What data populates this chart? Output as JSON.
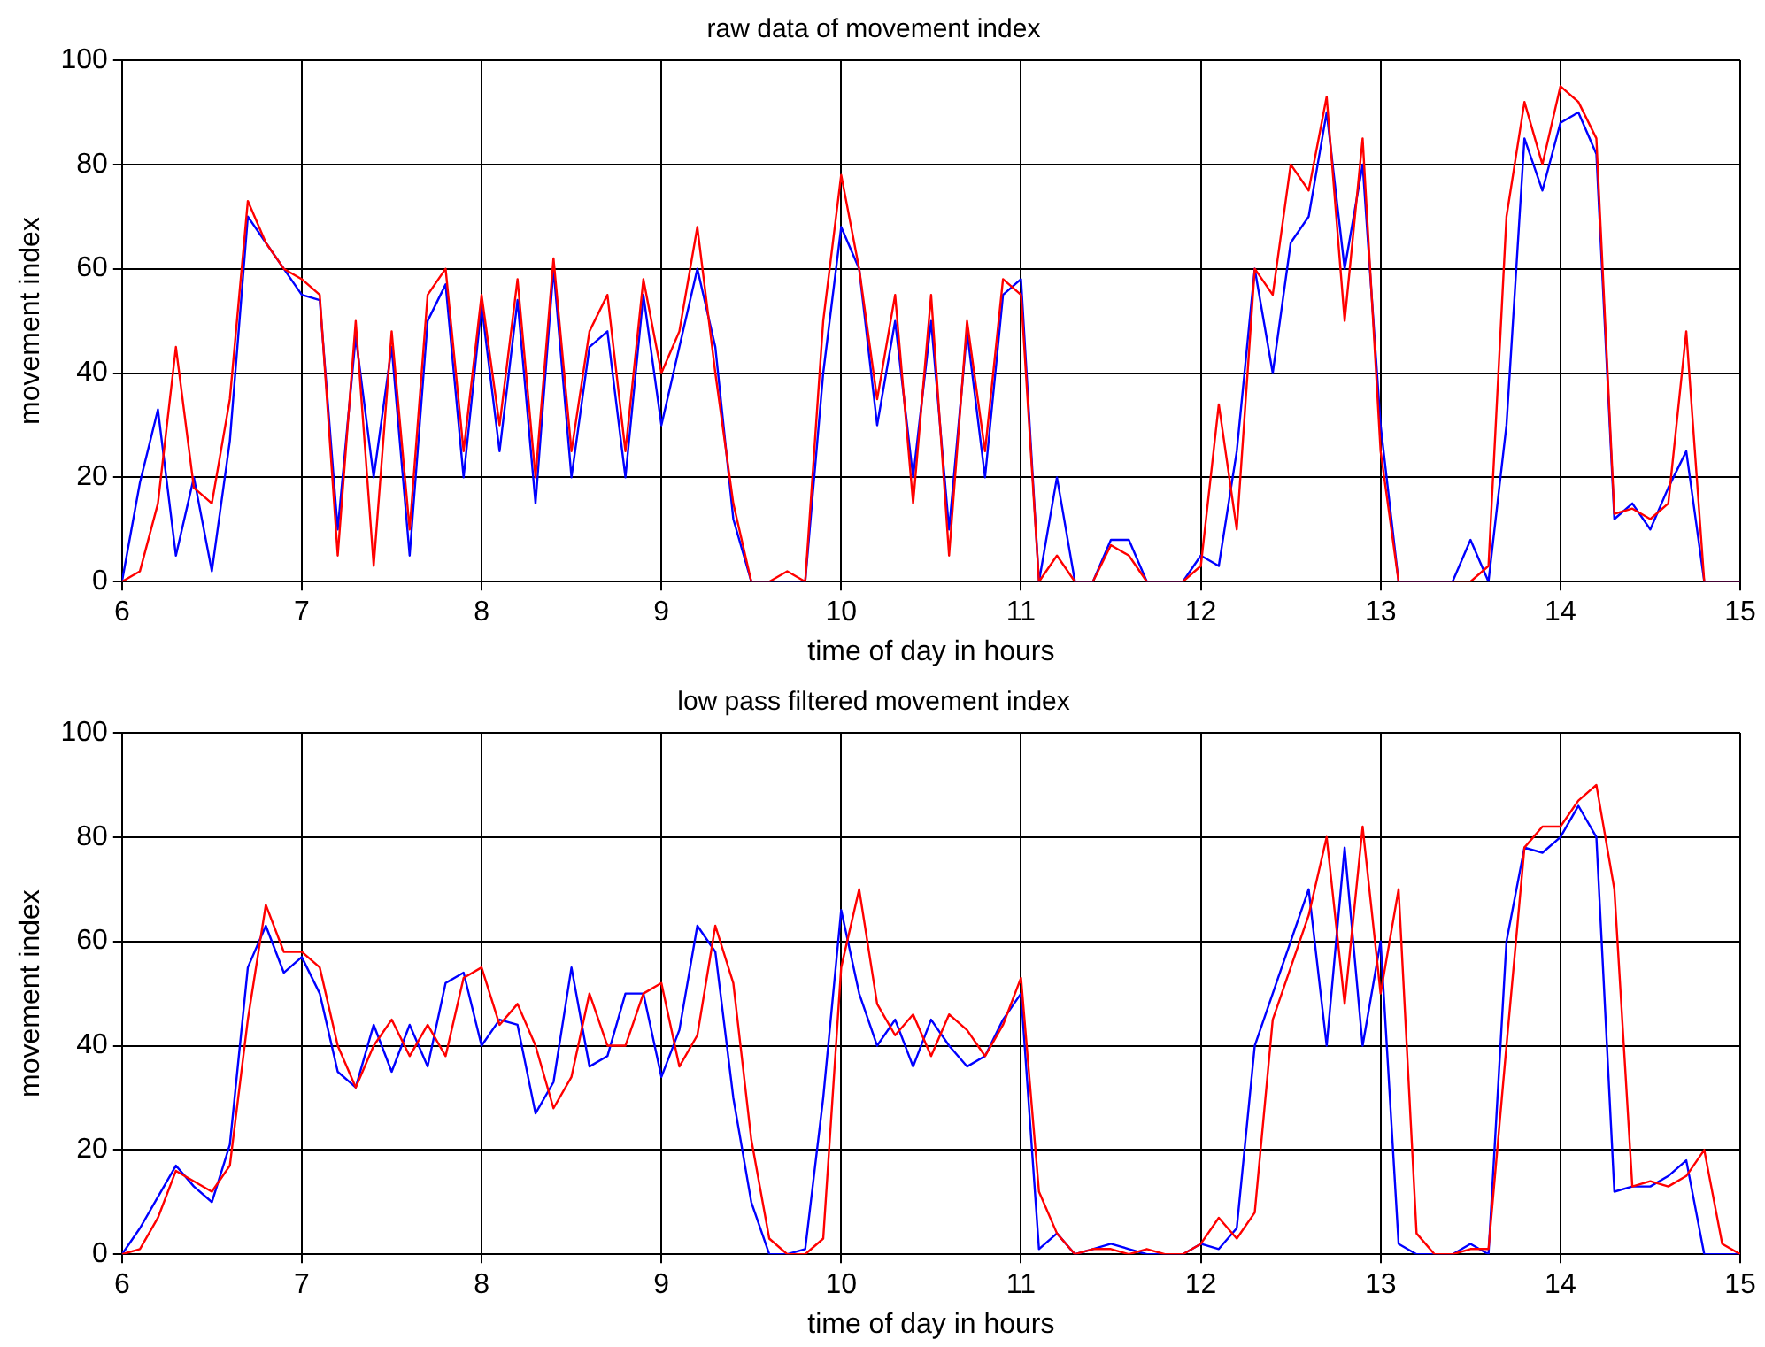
{
  "chart_data": [
    {
      "type": "line",
      "title": "raw data of movement index",
      "xlabel": "time of day in hours",
      "ylabel": "movement index",
      "xlim": [
        6,
        15
      ],
      "xticks": [
        6,
        7,
        8,
        9,
        10,
        11,
        12,
        13,
        14,
        15
      ],
      "ylim": [
        0,
        100
      ],
      "yticks": [
        0,
        20,
        40,
        60,
        80,
        100
      ],
      "grid": true,
      "x": [
        6.0,
        6.1,
        6.2,
        6.3,
        6.4,
        6.5,
        6.6,
        6.7,
        6.8,
        6.9,
        7.0,
        7.1,
        7.2,
        7.3,
        7.4,
        7.5,
        7.6,
        7.7,
        7.8,
        7.9,
        8.0,
        8.1,
        8.2,
        8.3,
        8.4,
        8.5,
        8.6,
        8.7,
        8.8,
        8.9,
        9.0,
        9.1,
        9.2,
        9.3,
        9.4,
        9.5,
        9.6,
        9.7,
        9.8,
        9.9,
        10.0,
        10.1,
        10.2,
        10.3,
        10.4,
        10.5,
        10.6,
        10.7,
        10.8,
        10.9,
        11.0,
        11.1,
        11.2,
        11.3,
        11.4,
        11.5,
        11.6,
        11.7,
        11.8,
        11.9,
        12.0,
        12.1,
        12.2,
        12.3,
        12.4,
        12.5,
        12.6,
        12.7,
        12.8,
        12.9,
        13.0,
        13.1,
        13.2,
        13.3,
        13.4,
        13.5,
        13.6,
        13.7,
        13.8,
        13.9,
        14.0,
        14.1,
        14.2,
        14.3,
        14.4,
        14.5,
        14.6,
        14.7,
        14.8,
        14.9,
        15.0
      ],
      "series": [
        {
          "color": "#ff0000",
          "values": [
            0,
            2,
            15,
            45,
            18,
            15,
            35,
            73,
            65,
            60,
            58,
            55,
            5,
            50,
            3,
            48,
            10,
            55,
            60,
            25,
            55,
            30,
            58,
            20,
            62,
            25,
            48,
            55,
            25,
            58,
            40,
            48,
            68,
            40,
            15,
            0,
            0,
            2,
            0,
            50,
            78,
            60,
            35,
            55,
            15,
            55,
            5,
            50,
            25,
            58,
            55,
            0,
            5,
            0,
            0,
            7,
            5,
            0,
            0,
            0,
            3,
            34,
            10,
            60,
            55,
            80,
            75,
            93,
            50,
            85,
            25,
            0,
            0,
            0,
            0,
            0,
            3,
            70,
            92,
            80,
            95,
            92,
            85,
            13,
            14,
            12,
            15,
            48,
            0,
            0,
            0
          ]
        },
        {
          "color": "#0000ff",
          "values": [
            0,
            19,
            33,
            5,
            20,
            2,
            27,
            70,
            65,
            60,
            55,
            54,
            10,
            47,
            20,
            45,
            5,
            50,
            57,
            20,
            53,
            25,
            54,
            15,
            60,
            20,
            45,
            48,
            20,
            55,
            30,
            45,
            60,
            45,
            12,
            0,
            0,
            0,
            0,
            40,
            68,
            60,
            30,
            50,
            20,
            50,
            10,
            48,
            20,
            55,
            58,
            0,
            20,
            0,
            0,
            8,
            8,
            0,
            0,
            0,
            5,
            3,
            25,
            60,
            40,
            65,
            70,
            90,
            60,
            80,
            30,
            0,
            0,
            0,
            0,
            8,
            0,
            30,
            85,
            75,
            88,
            90,
            82,
            12,
            15,
            10,
            18,
            25,
            0,
            0,
            0
          ]
        }
      ]
    },
    {
      "type": "line",
      "title": "low pass filtered movement index",
      "xlabel": "time of day in hours",
      "ylabel": "movement index",
      "xlim": [
        6,
        15
      ],
      "xticks": [
        6,
        7,
        8,
        9,
        10,
        11,
        12,
        13,
        14,
        15
      ],
      "ylim": [
        0,
        100
      ],
      "yticks": [
        0,
        20,
        40,
        60,
        80,
        100
      ],
      "grid": true,
      "x": [
        6.0,
        6.1,
        6.2,
        6.3,
        6.4,
        6.5,
        6.6,
        6.7,
        6.8,
        6.9,
        7.0,
        7.1,
        7.2,
        7.3,
        7.4,
        7.5,
        7.6,
        7.7,
        7.8,
        7.9,
        8.0,
        8.1,
        8.2,
        8.3,
        8.4,
        8.5,
        8.6,
        8.7,
        8.8,
        8.9,
        9.0,
        9.1,
        9.2,
        9.3,
        9.4,
        9.5,
        9.6,
        9.7,
        9.8,
        9.9,
        10.0,
        10.1,
        10.2,
        10.3,
        10.4,
        10.5,
        10.6,
        10.7,
        10.8,
        10.9,
        11.0,
        11.1,
        11.2,
        11.3,
        11.4,
        11.5,
        11.6,
        11.7,
        11.8,
        11.9,
        12.0,
        12.1,
        12.2,
        12.3,
        12.4,
        12.5,
        12.6,
        12.7,
        12.8,
        12.9,
        13.0,
        13.1,
        13.2,
        13.3,
        13.4,
        13.5,
        13.6,
        13.7,
        13.8,
        13.9,
        14.0,
        14.1,
        14.2,
        14.3,
        14.4,
        14.5,
        14.6,
        14.7,
        14.8,
        14.9,
        15.0
      ],
      "series": [
        {
          "color": "#ff0000",
          "values": [
            0,
            1,
            7,
            16,
            14,
            12,
            17,
            45,
            67,
            58,
            58,
            55,
            40,
            32,
            40,
            45,
            38,
            44,
            38,
            53,
            55,
            44,
            48,
            40,
            28,
            34,
            50,
            40,
            40,
            50,
            52,
            36,
            42,
            63,
            52,
            22,
            3,
            0,
            0,
            3,
            55,
            70,
            48,
            42,
            46,
            38,
            46,
            43,
            38,
            44,
            53,
            12,
            4,
            0,
            1,
            1,
            0,
            1,
            0,
            0,
            2,
            7,
            3,
            8,
            45,
            55,
            65,
            80,
            48,
            82,
            50,
            70,
            4,
            0,
            0,
            1,
            1,
            40,
            78,
            82,
            82,
            87,
            90,
            70,
            13,
            14,
            13,
            15,
            20,
            2,
            0
          ]
        },
        {
          "color": "#0000ff",
          "values": [
            0,
            5,
            11,
            17,
            13,
            10,
            21,
            55,
            63,
            54,
            57,
            50,
            35,
            32,
            44,
            35,
            44,
            36,
            52,
            54,
            40,
            45,
            44,
            27,
            33,
            55,
            36,
            38,
            50,
            50,
            34,
            43,
            63,
            58,
            30,
            10,
            0,
            0,
            1,
            30,
            66,
            50,
            40,
            45,
            36,
            45,
            40,
            36,
            38,
            45,
            50,
            1,
            4,
            0,
            1,
            2,
            1,
            0,
            0,
            0,
            2,
            1,
            5,
            40,
            50,
            60,
            70,
            40,
            78,
            40,
            60,
            2,
            0,
            0,
            0,
            2,
            0,
            60,
            78,
            77,
            80,
            86,
            80,
            12,
            13,
            13,
            15,
            18,
            0,
            0,
            0
          ]
        }
      ]
    }
  ]
}
